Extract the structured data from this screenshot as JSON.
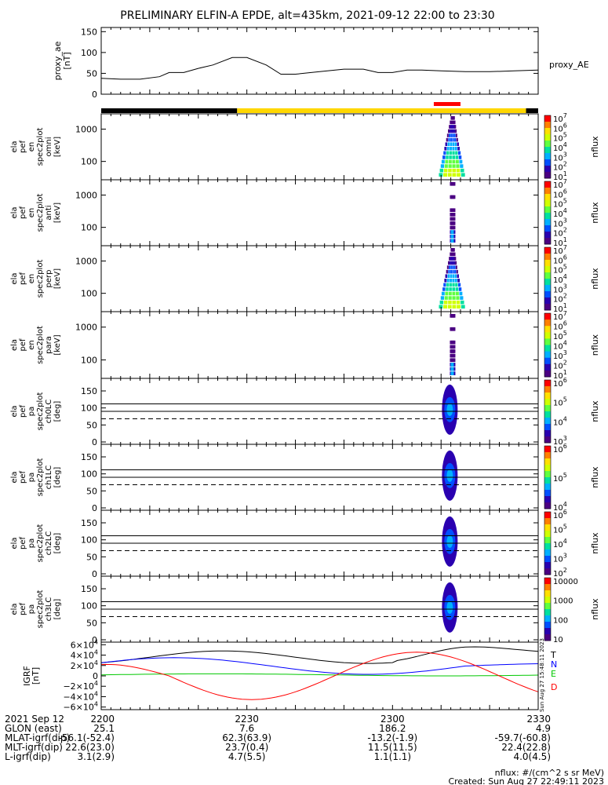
{
  "title": "PRELIMINARY ELFIN-A EPDE, alt=435km, 2021-09-12 22:00 to 23:30",
  "chart_data": [
    {
      "type": "line",
      "panel": "proxy_ae",
      "ylabel": [
        "proxy_ae",
        "[nT]"
      ],
      "yticks": [
        "0",
        "50",
        "100",
        "150"
      ],
      "ylim": [
        0,
        160
      ],
      "series": [
        {
          "name": "proxy_AE",
          "x": [
            0,
            4,
            8,
            12,
            14,
            17,
            20,
            23,
            27,
            30,
            34,
            37,
            40,
            45,
            50,
            54,
            57,
            60,
            63,
            66,
            70,
            75,
            80,
            85,
            90
          ],
          "values": [
            38,
            36,
            36,
            42,
            52,
            52,
            62,
            70,
            88,
            88,
            70,
            48,
            48,
            54,
            60,
            60,
            52,
            52,
            58,
            58,
            56,
            54,
            54,
            56,
            58
          ]
        }
      ]
    },
    {
      "type": "heatmap",
      "panel": "spectrograms",
      "zlabel": "nflux",
      "panels": [
        {
          "ylabel": [
            "ela",
            "pef",
            "en",
            "spec2plot",
            "omni",
            "[keV]"
          ],
          "yticks": [
            "100",
            "1000"
          ],
          "cbar_ticks": [
            "10^1",
            "10^2",
            "10^3",
            "10^4",
            "10^5",
            "10^6",
            "10^7"
          ]
        },
        {
          "ylabel": [
            "ela",
            "pef",
            "en",
            "spec2plot",
            "anti",
            "[keV]"
          ],
          "yticks": [
            "100",
            "1000"
          ],
          "cbar_ticks": [
            "10^1",
            "10^2",
            "10^3",
            "10^4",
            "10^5",
            "10^6",
            "10^7"
          ]
        },
        {
          "ylabel": [
            "ela",
            "pef",
            "en",
            "spec2plot",
            "perp",
            "[keV]"
          ],
          "yticks": [
            "100",
            "1000"
          ],
          "cbar_ticks": [
            "10^1",
            "10^2",
            "10^3",
            "10^4",
            "10^5",
            "10^6",
            "10^7"
          ]
        },
        {
          "ylabel": [
            "ela",
            "pef",
            "en",
            "spec2plot",
            "para",
            "[keV]"
          ],
          "yticks": [
            "100",
            "1000"
          ],
          "cbar_ticks": [
            "10^1",
            "10^2",
            "10^3",
            "10^4",
            "10^5",
            "10^6",
            "10^7"
          ]
        },
        {
          "ylabel": [
            "ela",
            "pef",
            "pa",
            "spec2plot",
            "ch0LC",
            "[deg]"
          ],
          "yticks": [
            "0",
            "50",
            "100",
            "150"
          ],
          "cbar_ticks": [
            "10^3",
            "10^4",
            "10^5",
            "10^6"
          ]
        },
        {
          "ylabel": [
            "ela",
            "pef",
            "pa",
            "spec2plot",
            "ch1LC",
            "[deg]"
          ],
          "yticks": [
            "0",
            "50",
            "100",
            "150"
          ],
          "cbar_ticks": [
            "10^4",
            "10^5",
            "10^6"
          ]
        },
        {
          "ylabel": [
            "ela",
            "pef",
            "pa",
            "spec2plot",
            "ch2LC",
            "[deg]"
          ],
          "yticks": [
            "0",
            "50",
            "100",
            "150"
          ],
          "cbar_ticks": [
            "10^2",
            "10^3",
            "10^4",
            "10^5",
            "10^6"
          ]
        },
        {
          "ylabel": [
            "ela",
            "pef",
            "pa",
            "spec2plot",
            "ch3LC",
            "[deg]"
          ],
          "yticks": [
            "0",
            "50",
            "100",
            "150"
          ],
          "cbar_ticks": [
            "10",
            "100",
            "1000",
            "10000"
          ]
        }
      ]
    },
    {
      "type": "line",
      "panel": "IGRF",
      "ylabel": [
        "IGRF",
        "[nT]"
      ],
      "yticks": [
        "6×10^4",
        "4×10^4",
        "2×10^4",
        "0",
        "−2×10^4",
        "−4×10^4",
        "−6×10^4"
      ],
      "ylim": [
        -65000,
        65000
      ],
      "series": [
        {
          "name": "T",
          "color": "#000000"
        },
        {
          "name": "N",
          "color": "#0000ff"
        },
        {
          "name": "E",
          "color": "#00c800"
        },
        {
          "name": "D",
          "color": "#ff0000"
        }
      ]
    }
  ],
  "xaxis": {
    "tick_labels": [
      "2200",
      "2230",
      "2300",
      "2330"
    ],
    "rows": [
      {
        "label": "2021 Sep 12",
        "values": [
          "2200",
          "2230",
          "2300",
          "2330"
        ]
      },
      {
        "label": "GLON (east)",
        "values": [
          "25.1",
          "7.6",
          "186.2",
          "4.9"
        ]
      },
      {
        "label": "MLAT-igrf(dip)",
        "values": [
          "-56.1(-52.4)",
          "62.3(63.9)",
          "-13.2(-1.9)",
          "-59.7(-60.8)"
        ]
      },
      {
        "label": "MLT-igrf(dip)",
        "values": [
          "22.6(23.0)",
          "23.7(0.4)",
          "11.5(11.5)",
          "22.4(22.8)"
        ]
      },
      {
        "label": "L-igrf(dip)",
        "values": [
          "3.1(2.9)",
          "4.7(5.5)",
          "1.1(1.1)",
          "4.0(4.5)"
        ]
      }
    ]
  },
  "footer": {
    "units": "nflux: #/(cm^2 s sr MeV)",
    "created": "Created: Sun Aug 27 22:49:11 2023",
    "vertical_stamp": "Sun Aug 27 15:48:11 2023"
  }
}
